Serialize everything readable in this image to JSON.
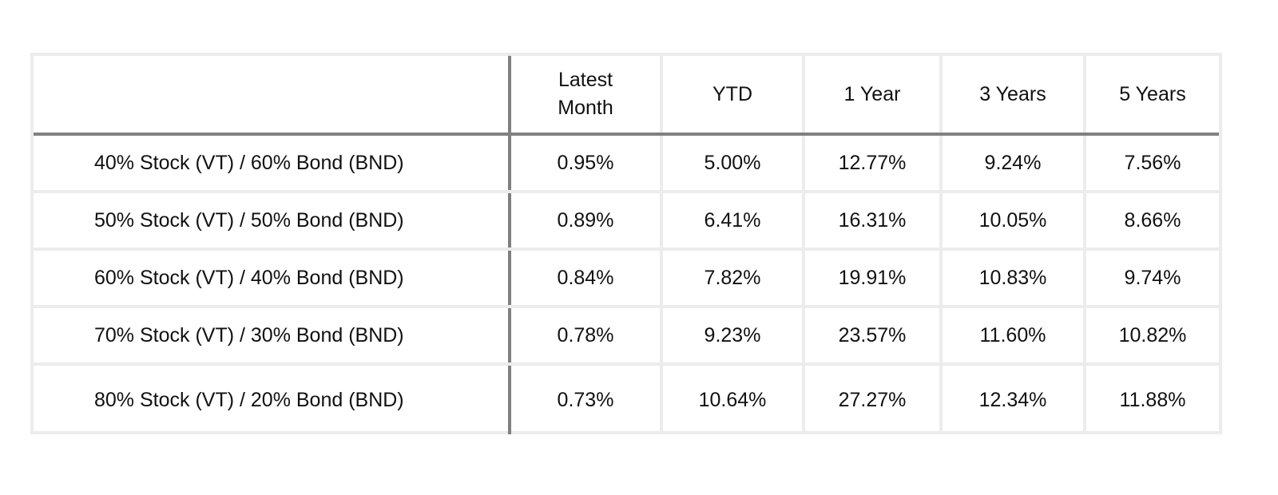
{
  "table": {
    "header": {
      "blank": "",
      "columns": [
        "Latest\nMonth",
        "YTD",
        "1 Year",
        "3 Years",
        "5 Years"
      ]
    },
    "rows": [
      {
        "label": "40% Stock (VT) / 60% Bond (BND)",
        "values": [
          "0.95%",
          "5.00%",
          "12.77%",
          "9.24%",
          "7.56%"
        ]
      },
      {
        "label": "50% Stock (VT) / 50% Bond (BND)",
        "values": [
          "0.89%",
          "6.41%",
          "16.31%",
          "10.05%",
          "8.66%"
        ]
      },
      {
        "label": "60% Stock (VT) / 40% Bond (BND)",
        "values": [
          "0.84%",
          "7.82%",
          "19.91%",
          "10.83%",
          "9.74%"
        ]
      },
      {
        "label": "70% Stock (VT) / 30% Bond (BND)",
        "values": [
          "0.78%",
          "9.23%",
          "23.57%",
          "11.60%",
          "10.82%"
        ]
      },
      {
        "label": "80% Stock (VT) / 20% Bond (BND)",
        "values": [
          "0.73%",
          "10.64%",
          "27.27%",
          "12.34%",
          "11.88%"
        ]
      }
    ]
  }
}
